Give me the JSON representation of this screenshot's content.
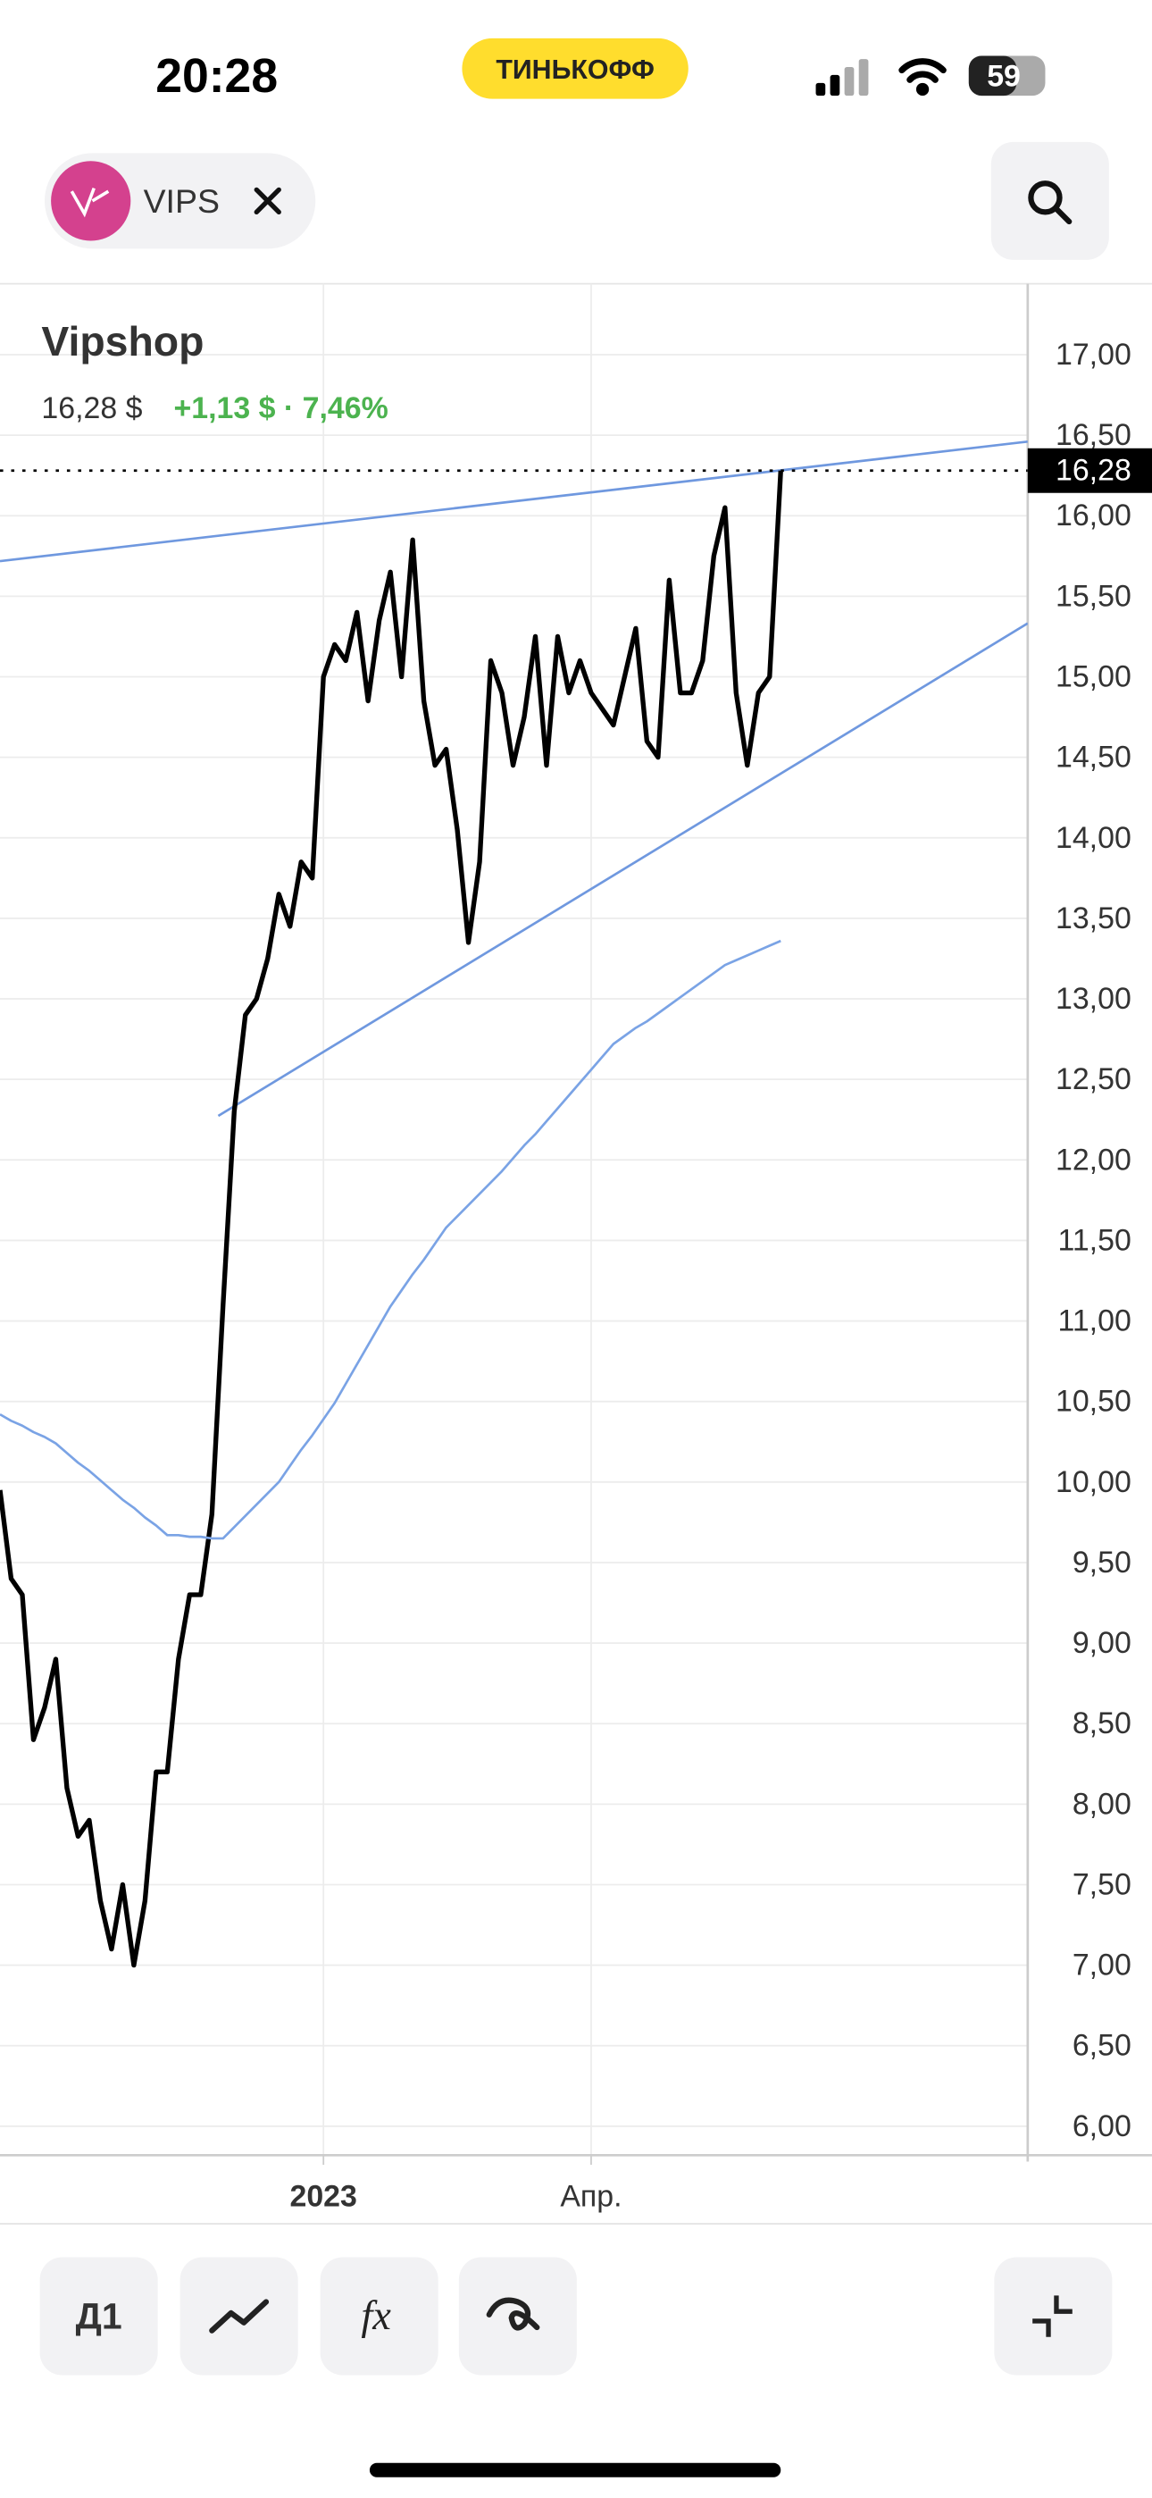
{
  "status_bar": {
    "time": "20:28",
    "carrier_badge": "ТИНЬКОФФ",
    "battery": "59"
  },
  "ticker_chip": {
    "symbol": "VIPS"
  },
  "chart_data": {
    "type": "line",
    "title": "Vipshop",
    "price": "16,28 $",
    "change": "+1,13 $ · 7,46%",
    "categories": [
      null,
      null,
      null,
      null,
      null,
      null,
      null,
      null,
      null,
      null,
      null,
      null,
      null,
      null,
      null,
      null,
      null,
      null,
      null,
      null,
      null,
      null,
      null,
      null,
      null,
      null,
      null,
      null,
      null,
      "2023",
      null,
      null,
      null,
      null,
      null,
      null,
      null,
      null,
      null,
      null,
      null,
      null,
      null,
      null,
      null,
      null,
      null,
      null,
      null,
      null,
      null,
      null,
      null,
      "Апр.",
      null,
      null,
      null,
      null,
      null,
      null,
      null,
      null,
      null,
      null,
      null,
      null,
      null,
      null,
      null,
      null,
      null
    ],
    "series": [
      {
        "color": "#000000",
        "values": [
          9.95,
          9.4,
          9.3,
          8.4,
          8.6,
          8.9,
          8.1,
          7.8,
          7.9,
          7.4,
          7.1,
          7.5,
          7.0,
          7.4,
          8.2,
          8.2,
          8.9,
          9.3,
          9.3,
          9.8,
          11.1,
          12.3,
          12.9,
          13.0,
          13.25,
          13.65,
          13.45,
          13.85,
          13.75,
          15.0,
          15.2,
          15.1,
          15.4,
          14.85,
          15.35,
          15.65,
          15.0,
          15.85,
          14.85,
          14.45,
          14.55,
          14.05,
          13.35,
          13.85,
          15.1,
          14.9,
          14.45,
          14.75,
          15.25,
          14.45,
          15.25,
          14.9,
          15.1,
          14.9,
          14.8,
          14.7,
          15.0,
          15.3,
          14.6,
          14.5,
          15.6,
          14.9,
          14.9,
          15.1,
          15.75,
          16.05,
          14.9,
          14.45,
          14.9,
          15.0,
          16.28
        ]
      },
      {
        "color": "#7aa3e5",
        "values": [
          10.42,
          10.38,
          10.35,
          10.31,
          10.28,
          10.24,
          10.18,
          10.12,
          10.07,
          10.01,
          9.95,
          9.89,
          9.84,
          9.78,
          9.73,
          9.67,
          9.67,
          9.66,
          9.66,
          9.65,
          9.65,
          9.72,
          9.79,
          9.86,
          9.93,
          10.0,
          10.1,
          10.2,
          10.29,
          10.39,
          10.49,
          10.61,
          10.73,
          10.85,
          10.97,
          11.09,
          11.19,
          11.29,
          11.38,
          11.48,
          11.58,
          11.65,
          11.72,
          11.79,
          11.86,
          11.93,
          12.01,
          12.09,
          12.16,
          12.24,
          12.32,
          12.4,
          12.48,
          12.56,
          12.64,
          12.72,
          12.77,
          12.82,
          12.86,
          12.91,
          12.96,
          13.01,
          13.06,
          13.11,
          13.16,
          13.21,
          13.24,
          13.27,
          13.3,
          13.33,
          13.36
        ]
      }
    ],
    "ylim": [
      5.82,
      17.44
    ],
    "yticks": [
      {
        "value": 6,
        "label": "6,00"
      },
      {
        "value": 6.5,
        "label": "6,50"
      },
      {
        "value": 7,
        "label": "7,00"
      },
      {
        "value": 7.5,
        "label": "7,50"
      },
      {
        "value": 8,
        "label": "8,00"
      },
      {
        "value": 8.5,
        "label": "8,50"
      },
      {
        "value": 9,
        "label": "9,00"
      },
      {
        "value": 9.5,
        "label": "9,50"
      },
      {
        "value": 10,
        "label": "10,00"
      },
      {
        "value": 10.5,
        "label": "10,50"
      },
      {
        "value": 11,
        "label": "11,00"
      },
      {
        "value": 11.5,
        "label": "11,50"
      },
      {
        "value": 12,
        "label": "12,00"
      },
      {
        "value": 12.5,
        "label": "12,50"
      },
      {
        "value": 13,
        "label": "13,00"
      },
      {
        "value": 13.5,
        "label": "13,50"
      },
      {
        "value": 14,
        "label": "14,00"
      },
      {
        "value": 14.5,
        "label": "14,50"
      },
      {
        "value": 15,
        "label": "15,00"
      },
      {
        "value": 15.5,
        "label": "15,50"
      },
      {
        "value": 16,
        "label": "16,00"
      },
      {
        "value": 16.5,
        "label": "16,50"
      },
      {
        "value": 17,
        "label": "17,00"
      }
    ],
    "grid": true,
    "last": {
      "value": 16.28,
      "label": "16,28"
    }
  },
  "toolbar": {
    "interval": "Д1"
  }
}
